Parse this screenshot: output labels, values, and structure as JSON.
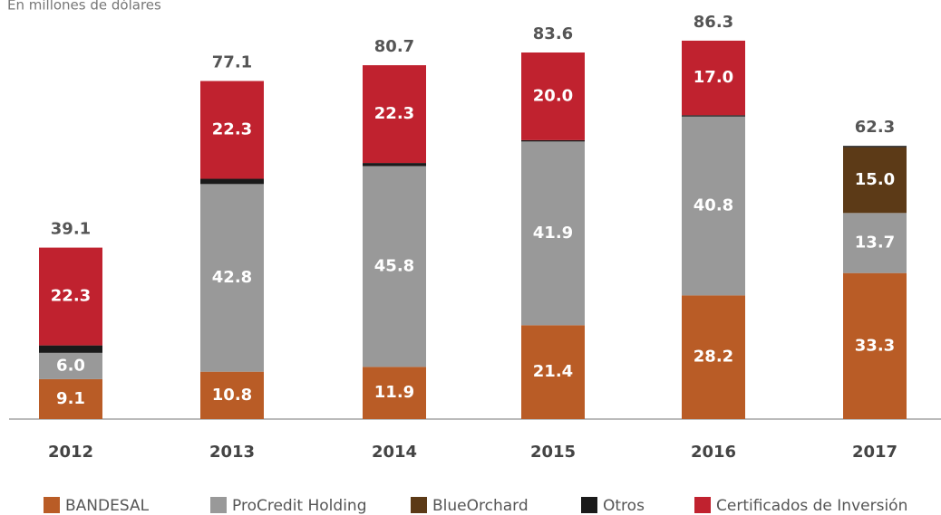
{
  "chart_data": {
    "type": "stacked_bar",
    "subtitle": "En millones de dólares",
    "categories": [
      "2012",
      "2013",
      "2014",
      "2015",
      "2016",
      "2017"
    ],
    "series": [
      {
        "name": "BANDESAL",
        "color": "#b95c26",
        "values": [
          9.1,
          10.8,
          11.9,
          21.4,
          28.2,
          33.3
        ],
        "value_labels": [
          "9.1",
          "10.8",
          "11.9",
          "21.4",
          "28.2",
          "33.3"
        ]
      },
      {
        "name": "ProCredit Holding",
        "color": "#999999",
        "values": [
          6,
          42.8,
          45.8,
          41.9,
          40.8,
          13.7
        ],
        "value_labels": [
          "6.0",
          "42.8",
          "45.8",
          "41.9",
          "40.8",
          "13.7"
        ]
      },
      {
        "name": "BlueOrchard",
        "color": "#5c3a17",
        "values": [
          0,
          0,
          0,
          0,
          0,
          15
        ],
        "value_labels": [
          null,
          null,
          null,
          null,
          null,
          "15.0"
        ]
      },
      {
        "name": "Otros",
        "color": "#1a1a1a",
        "values": [
          1.7,
          1.2,
          0.7,
          0.3,
          0.3,
          0.3
        ]
      },
      {
        "name": "Certificados de Inversión",
        "color": "#c0222f",
        "values": [
          22.3,
          22.3,
          22.3,
          20,
          17,
          0
        ],
        "value_labels": [
          "22.3",
          "22.3",
          "22.3",
          "20.0",
          "17.0",
          null
        ]
      }
    ],
    "totals": [
      39.1,
      77.1,
      80.7,
      83.6,
      86.3,
      62.3
    ],
    "ylim": [
      0,
      90
    ]
  }
}
